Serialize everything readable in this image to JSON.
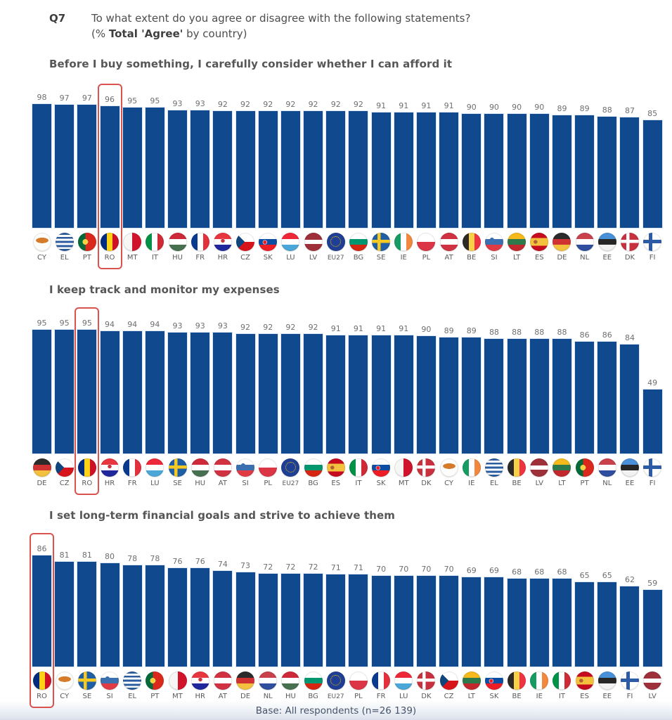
{
  "header": {
    "question_code": "Q7",
    "question_line1": "To what extent do you agree or disagree with the following statements?",
    "question_line2_prefix": "(% ",
    "question_line2_bold": "Total 'Agree'",
    "question_line2_suffix": " by country)"
  },
  "colors": {
    "bar": "#11498f",
    "highlight_box": "#d9534f",
    "value_label": "#6f6f6f",
    "title_text": "#565656"
  },
  "chart_data": [
    {
      "type": "bar",
      "title": "Before I buy something, I carefully consider whether I can afford it",
      "unit": "% Total 'Agree'",
      "highlight": "RO",
      "ylim": [
        0,
        100
      ],
      "categories": [
        "CY",
        "EL",
        "PT",
        "RO",
        "MT",
        "IT",
        "HU",
        "FR",
        "HR",
        "CZ",
        "SK",
        "LU",
        "LV",
        "EU27",
        "BG",
        "SE",
        "IE",
        "PL",
        "AT",
        "BE",
        "SI",
        "LT",
        "ES",
        "DE",
        "NL",
        "EE",
        "DK",
        "FI"
      ],
      "values": [
        98,
        97,
        97,
        96,
        95,
        95,
        93,
        93,
        92,
        92,
        92,
        92,
        92,
        92,
        92,
        91,
        91,
        91,
        91,
        90,
        90,
        90,
        90,
        89,
        89,
        88,
        87,
        85
      ]
    },
    {
      "type": "bar",
      "title": "I keep track and monitor my expenses",
      "unit": "% Total 'Agree'",
      "highlight": "RO",
      "ylim": [
        0,
        100
      ],
      "categories": [
        "DE",
        "CZ",
        "RO",
        "HR",
        "FR",
        "LU",
        "SE",
        "HU",
        "AT",
        "SI",
        "PL",
        "EU27",
        "BG",
        "ES",
        "IT",
        "SK",
        "MT",
        "DK",
        "CY",
        "IE",
        "EL",
        "BE",
        "LV",
        "LT",
        "PT",
        "NL",
        "EE",
        "FI"
      ],
      "values": [
        95,
        95,
        95,
        94,
        94,
        94,
        93,
        93,
        93,
        92,
        92,
        92,
        92,
        91,
        91,
        91,
        91,
        90,
        89,
        89,
        88,
        88,
        88,
        88,
        86,
        86,
        84,
        49
      ]
    },
    {
      "type": "bar",
      "title": "I set long-term financial goals and strive to achieve them",
      "unit": "% Total 'Agree'",
      "highlight": "RO",
      "ylim": [
        0,
        100
      ],
      "categories": [
        "RO",
        "CY",
        "SE",
        "SI",
        "EL",
        "PT",
        "MT",
        "HR",
        "AT",
        "DE",
        "NL",
        "HU",
        "BG",
        "EU27",
        "PL",
        "FR",
        "LU",
        "DK",
        "CZ",
        "LT",
        "SK",
        "BE",
        "IE",
        "IT",
        "ES",
        "EE",
        "FI",
        "LV"
      ],
      "values": [
        86,
        81,
        81,
        80,
        78,
        78,
        76,
        76,
        74,
        73,
        72,
        72,
        72,
        71,
        71,
        70,
        70,
        70,
        70,
        69,
        69,
        68,
        68,
        68,
        65,
        65,
        62,
        59
      ]
    }
  ],
  "footer": {
    "base_text": "Base: All respondents (n=26 139)"
  }
}
